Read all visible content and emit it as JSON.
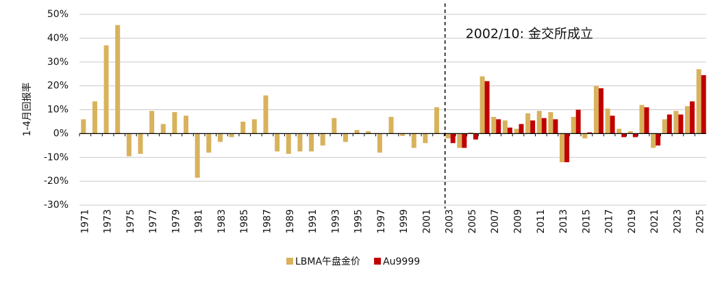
{
  "chart_data": {
    "type": "bar",
    "ylabel": "1-4月回报率",
    "categories": [
      "1971",
      null,
      "1973",
      null,
      "1975",
      null,
      "1977",
      null,
      "1979",
      null,
      "1981",
      null,
      "1983",
      null,
      "1985",
      null,
      "1987",
      null,
      "1989",
      null,
      "1991",
      null,
      "1993",
      null,
      "1995",
      null,
      "1997",
      null,
      "1999",
      null,
      "2001",
      null,
      "2003",
      null,
      "2005",
      null,
      "2007",
      null,
      "2009",
      null,
      "2011",
      null,
      "2013",
      null,
      "2015",
      null,
      "2017",
      null,
      "2019",
      null,
      "2021",
      null,
      "2023",
      null,
      "2025"
    ],
    "series": [
      {
        "name": "LBMA午盘金价",
        "color": "#d8b25c",
        "values": [
          6,
          13.5,
          37,
          45.5,
          -9.5,
          -8.5,
          9.5,
          4,
          9,
          7.5,
          -18.5,
          -8,
          -3.5,
          -1.5,
          5,
          6,
          16,
          -7.5,
          -8.5,
          -7.5,
          -7.5,
          -5,
          6.5,
          -3.5,
          1.5,
          1,
          -8,
          7,
          -1,
          -6,
          -4,
          11,
          -2,
          -6,
          0.5,
          24,
          7,
          5.5,
          2,
          8.5,
          9.5,
          9,
          -12,
          7,
          -2,
          20,
          10.5,
          2,
          1,
          12,
          -6,
          6,
          9.5,
          11.5,
          27
        ]
      },
      {
        "name": "Au9999",
        "color": "#c00000",
        "values": [
          null,
          null,
          null,
          null,
          null,
          null,
          null,
          null,
          null,
          null,
          null,
          null,
          null,
          null,
          null,
          null,
          null,
          null,
          null,
          null,
          null,
          null,
          null,
          null,
          null,
          null,
          null,
          null,
          null,
          null,
          null,
          null,
          -4,
          -6,
          -2.5,
          22,
          6,
          2.5,
          4,
          5.5,
          6.5,
          6,
          -12,
          10,
          0.5,
          19,
          7.5,
          -1.5,
          -1.5,
          11,
          -5,
          8,
          8,
          13.5,
          24.5
        ]
      }
    ],
    "ylim": [
      -30,
      50
    ],
    "yticks": [
      {
        "value": -30,
        "label": "-30%"
      },
      {
        "value": -20,
        "label": "-20%"
      },
      {
        "value": -10,
        "label": "-10%"
      },
      {
        "value": 0,
        "label": "0%"
      },
      {
        "value": 10,
        "label": "10%"
      },
      {
        "value": 20,
        "label": "20%"
      },
      {
        "value": 30,
        "label": "30%"
      },
      {
        "value": 40,
        "label": "40%"
      },
      {
        "value": 50,
        "label": "50%"
      }
    ],
    "grid": true,
    "legend": "bottom",
    "annotation": {
      "text": "2002/10: 金交所成立",
      "x": "2003"
    }
  }
}
